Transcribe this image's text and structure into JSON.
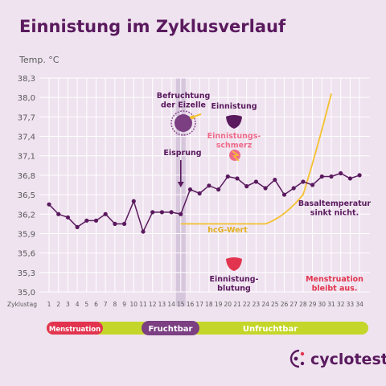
{
  "title": "Einnistung im Zyklusverlauf",
  "colors": {
    "background": "#efe3ef",
    "grid": "#ffffff",
    "accent_purple": "#5a1a5e",
    "fruchtbar_band": "#d6c6dc",
    "hcg_line": "#f5c12e",
    "menstruation_red": "#e2344e",
    "pink": "#ee6c8a",
    "lime": "#c4d62a",
    "purple_text": "#5a1a5e"
  },
  "chart_data": {
    "type": "line",
    "title": "Einnistung im Zyklusverlauf",
    "ylabel": "Temp. °C",
    "xlabel": "Zyklustag",
    "ylim": [
      35.0,
      38.3
    ],
    "y_ticks": [
      "35,0",
      "35,3",
      "35,6",
      "35,9",
      "36,2",
      "36,5",
      "36,8",
      "37,1",
      "37,4",
      "37,7",
      "38,0",
      "38,3"
    ],
    "y_tick_values": [
      35.0,
      35.3,
      35.6,
      35.9,
      36.2,
      36.5,
      36.8,
      37.1,
      37.4,
      37.7,
      38.0,
      38.3
    ],
    "x_ticks": [
      "1",
      "2",
      "3",
      "4",
      "5",
      "6",
      "7",
      "8",
      "9",
      "10",
      "11",
      "12",
      "13",
      "14",
      "15",
      "16",
      "17",
      "18",
      "19",
      "20",
      "21",
      "22",
      "23",
      "24",
      "25",
      "26",
      "27",
      "28",
      "29",
      "30",
      "31",
      "32",
      "33",
      "34"
    ],
    "grid": true,
    "series": [
      {
        "name": "Basaltemperatur",
        "x": [
          1,
          2,
          3,
          4,
          5,
          6,
          7,
          8,
          9,
          10,
          11,
          12,
          13,
          14,
          15,
          16,
          17,
          18,
          19,
          20,
          21,
          22,
          23,
          24,
          25,
          26,
          27,
          28,
          29,
          30,
          31,
          32,
          33,
          34
        ],
        "values": [
          36.35,
          36.2,
          36.15,
          36.0,
          36.1,
          36.1,
          36.2,
          36.05,
          36.05,
          36.4,
          35.93,
          36.23,
          36.23,
          36.23,
          36.2,
          36.58,
          36.52,
          36.64,
          36.58,
          36.78,
          36.75,
          36.63,
          36.7,
          36.6,
          36.73,
          36.5,
          36.6,
          36.7,
          36.65,
          36.78,
          36.78,
          36.83,
          36.75,
          36.8
        ]
      },
      {
        "name": "hcG-Wert",
        "x": [
          15,
          20,
          24,
          26,
          28,
          29.5,
          31
        ],
        "values": [
          36.05,
          36.05,
          36.05,
          36.15,
          36.5,
          37.2,
          38.06
        ]
      }
    ],
    "highlight_day": 15,
    "annotations": {
      "befruchtung": "Befruchtung\nder Eizelle",
      "einnistung": "Einnistung",
      "schmerz": "Einnistungs-\nschmerz",
      "eisprung": "Eisprung",
      "basal": "Basaltemperatur\nsinkt nicht.",
      "hcg": "hcG-Wert",
      "blutung": "Einnistung-\nblutung",
      "menstruation_aus": "Menstruation\nbleibt aus."
    }
  },
  "phases": {
    "menstruation": "Menstruation",
    "fruchtbar": "Fruchtbar",
    "unfruchtbar": "Unfruchtbar"
  },
  "brand": "cyclotest"
}
